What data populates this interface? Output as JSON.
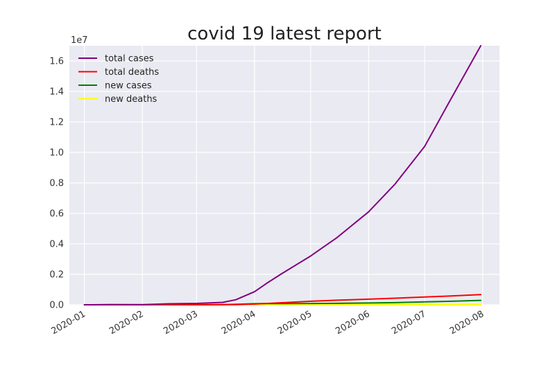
{
  "chart_data": {
    "type": "line",
    "title": "covid 19 latest report",
    "xlabel": "",
    "ylabel": "",
    "y_offset_label": "1e7",
    "x_ticks": [
      "2020-01",
      "2020-02",
      "2020-03",
      "2020-04",
      "2020-05",
      "2020-06",
      "2020-07",
      "2020-08"
    ],
    "y_ticks": [
      "0.0",
      "0.2",
      "0.4",
      "0.6",
      "0.8",
      "1.0",
      "1.2",
      "1.4",
      "1.6"
    ],
    "y_scale_factor": 10000000,
    "xlim": [
      "2019-12-24",
      "2020-08-10"
    ],
    "ylim": [
      0,
      17000000
    ],
    "grid": true,
    "legend_position": "top-left",
    "dates": [
      "2020-01-01",
      "2020-01-15",
      "2020-02-01",
      "2020-02-15",
      "2020-03-01",
      "2020-03-15",
      "2020-03-22",
      "2020-04-01",
      "2020-04-08",
      "2020-04-15",
      "2020-05-01",
      "2020-05-15",
      "2020-06-01",
      "2020-06-15",
      "2020-07-01",
      "2020-07-15",
      "2020-07-31"
    ],
    "series": [
      {
        "name": "total cases",
        "color": "#800080",
        "values": [
          30,
          20000,
          15000,
          70000,
          90000,
          160000,
          330000,
          860000,
          1450000,
          2000000,
          3200000,
          4400000,
          6100000,
          7900000,
          10400000,
          13500000,
          17000000
        ]
      },
      {
        "name": "total deaths",
        "color": "#ff0000",
        "values": [
          0,
          0,
          300,
          1500,
          3000,
          8000,
          15000,
          50000,
          90000,
          130000,
          230000,
          300000,
          370000,
          430000,
          510000,
          580000,
          670000
        ]
      },
      {
        "name": "new cases",
        "color": "#008000",
        "values": [
          0,
          1500,
          2000,
          2000,
          2000,
          15000,
          33000,
          75000,
          80000,
          80000,
          85000,
          95000,
          120000,
          140000,
          190000,
          230000,
          290000
        ]
      },
      {
        "name": "new deaths",
        "color": "#ffff00",
        "values": [
          0,
          100,
          100,
          100,
          100,
          500,
          2000,
          5000,
          7000,
          7000,
          5000,
          4500,
          4000,
          4000,
          5000,
          5500,
          6500
        ]
      }
    ]
  }
}
